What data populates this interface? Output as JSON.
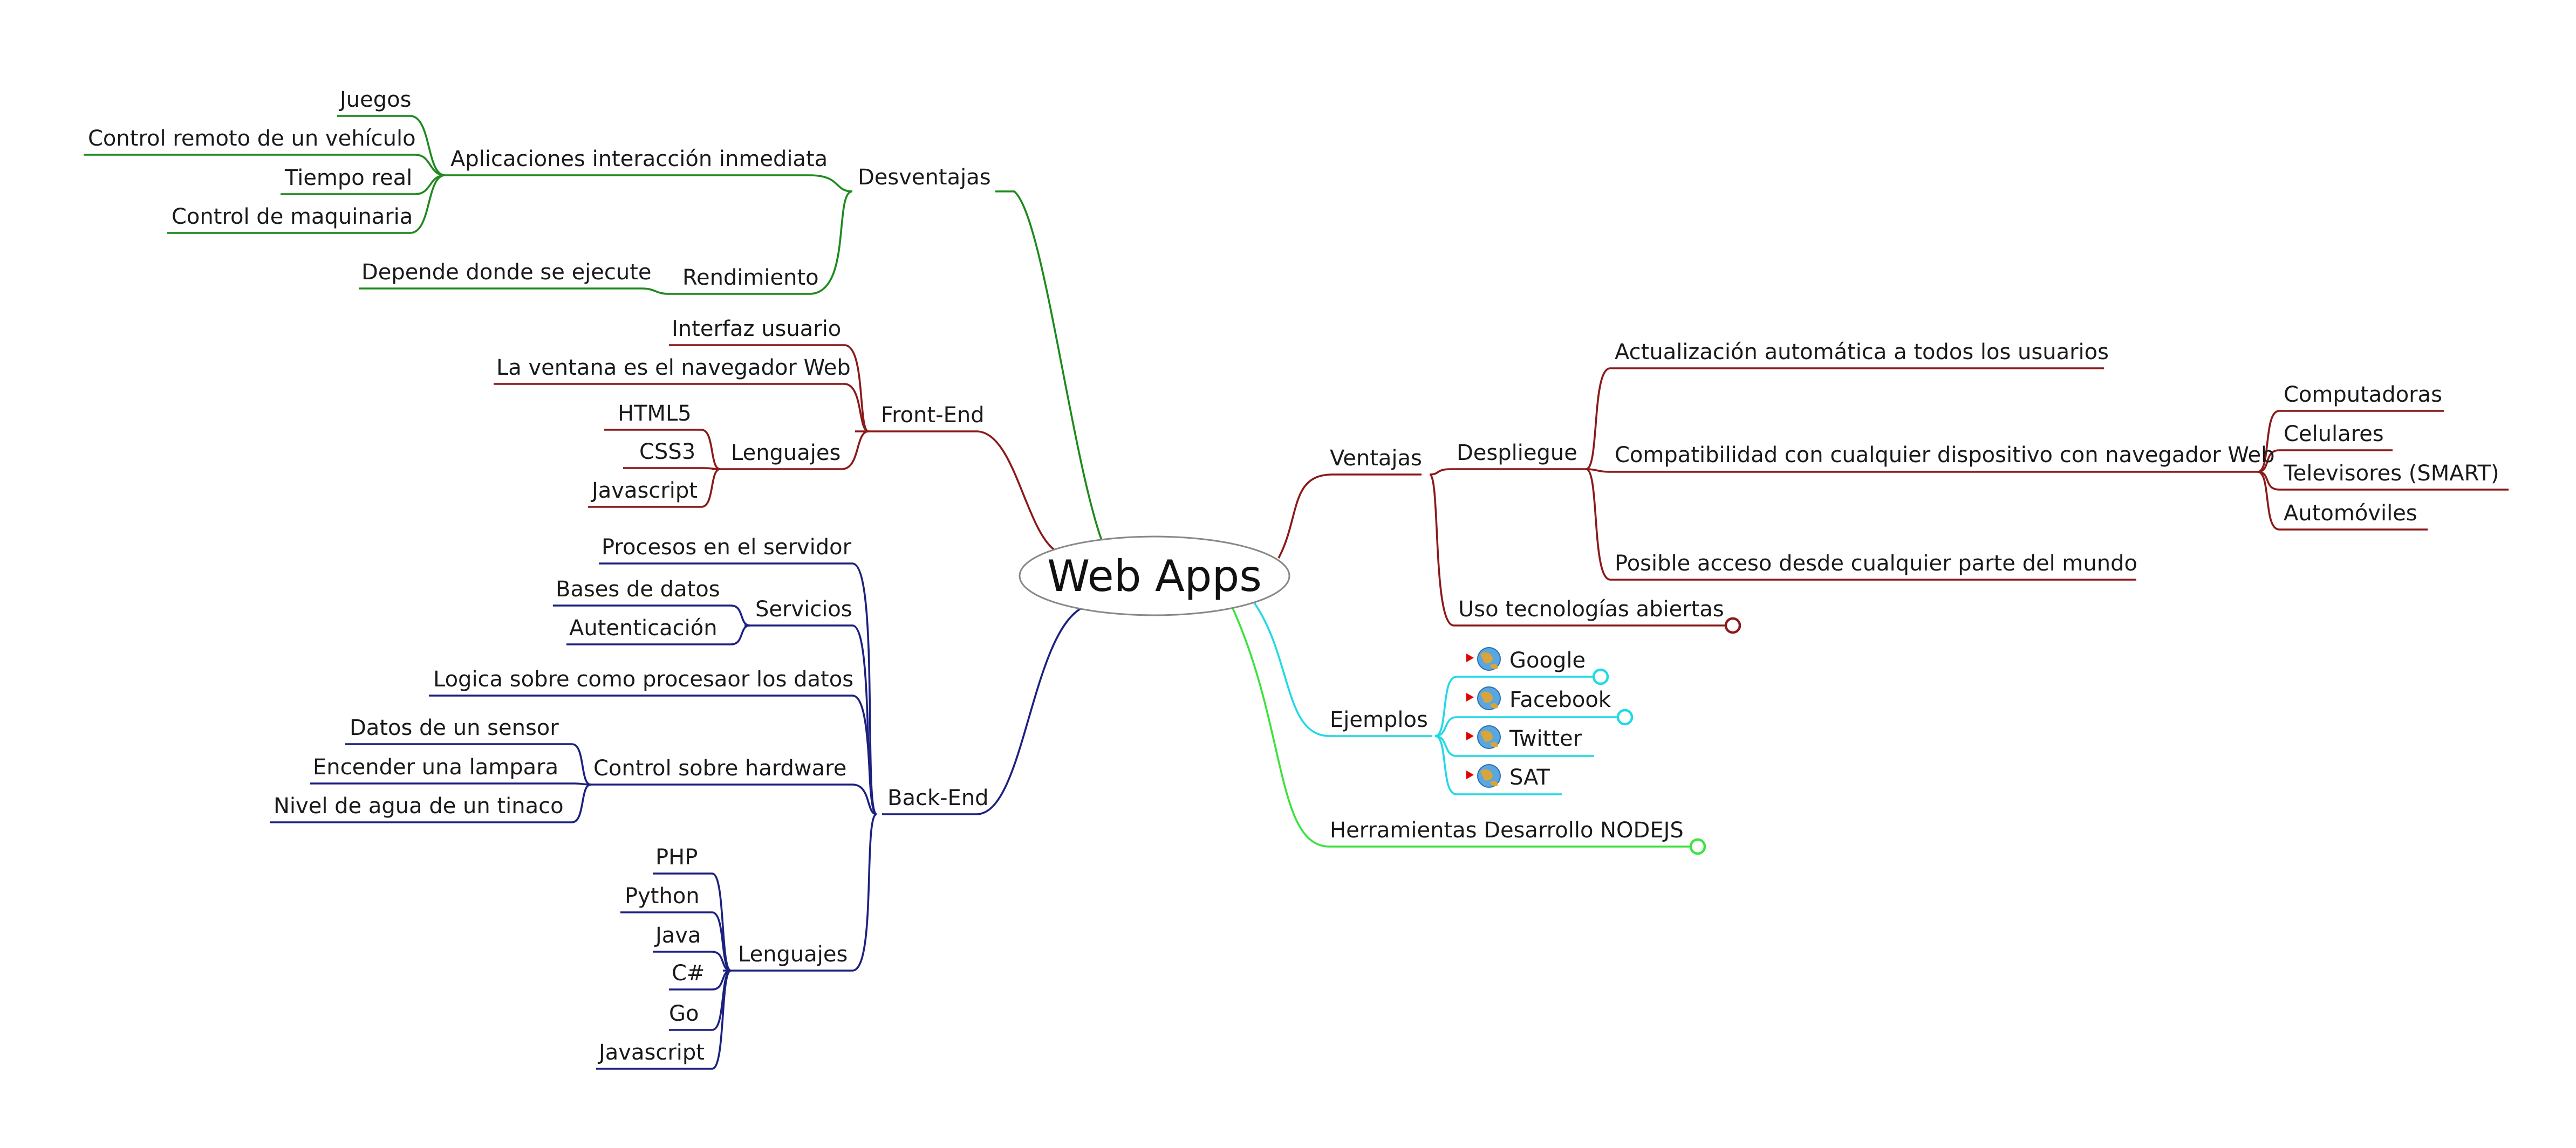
{
  "colors": {
    "green": "#1e8a1e",
    "maroon": "#8b1a1a",
    "navy": "#1c2180",
    "cyan": "#22d9e6",
    "lime": "#3ee23e",
    "root_stroke": "#888888",
    "flag": "#e00000"
  },
  "root": {
    "label": "Web Apps"
  },
  "nodes": {
    "desventajas": "Desventajas",
    "aplicaciones": "Aplicaciones interacción inmediata",
    "juegos": "Juegos",
    "control_remoto": "Control remoto de un vehículo",
    "tiempo_real": "Tiempo real",
    "control_maquinaria": "Control de maquinaria",
    "rendimiento": "Rendimiento",
    "depende": "Depende donde se ejecute",
    "front_end": "Front-End",
    "interfaz": "Interfaz usuario",
    "ventana": "La ventana es el navegador Web",
    "lenguajes_fe": "Lenguajes",
    "html5": "HTML5",
    "css3": "CSS3",
    "javascript_fe": "Javascript",
    "back_end": "Back-End",
    "procesos": "Procesos en el servidor",
    "servicios": "Servicios",
    "bases": "Bases de datos",
    "autenticacion": "Autenticación",
    "logica": "Logica sobre como procesaor los datos",
    "control_hw": "Control sobre hardware",
    "sensor": "Datos de un sensor",
    "lampara": "Encender una lampara",
    "tinaco": "Nivel de agua de un tinaco",
    "lenguajes_be": "Lenguajes",
    "php": "PHP",
    "python": "Python",
    "java": "Java",
    "csharp": "C#",
    "go": "Go",
    "javascript_be": "Javascript",
    "ventajas": "Ventajas",
    "despliegue": "Despliegue",
    "actualizacion": "Actualización automática a todos los usuarios",
    "compatibilidad": "Compatibilidad con cualquier dispositivo con navegador Web",
    "computadoras": "Computadoras",
    "celulares": "Celulares",
    "televisores": "Televisores (SMART)",
    "automoviles": "Automóviles",
    "posible": "Posible acceso desde cualquier parte del mundo",
    "uso": "Uso tecnologías abiertas",
    "ejemplos": "Ejemplos",
    "google": "Google",
    "facebook": "Facebook",
    "twitter": "Twitter",
    "sat": "SAT",
    "herramientas": "Herramientas Desarrollo NODEJS"
  },
  "icons": {
    "link": "globe-link-icon",
    "flag": "flag-marker-icon"
  }
}
